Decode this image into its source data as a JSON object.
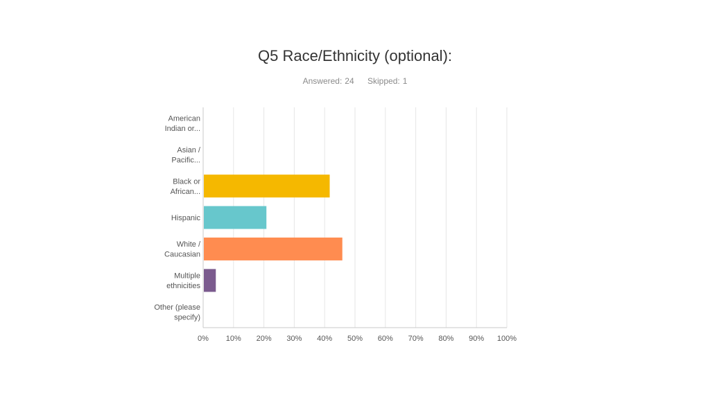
{
  "header": {
    "title": "Q5 Race/Ethnicity (optional):",
    "answered_label": "Answered:",
    "answered_value": "24",
    "skipped_label": "Skipped:",
    "skipped_value": "1"
  },
  "chart_data": {
    "type": "bar",
    "orientation": "horizontal",
    "title": "Q5 Race/Ethnicity (optional):",
    "categories": [
      [
        "American",
        "Indian or..."
      ],
      [
        "Asian /",
        "Pacific..."
      ],
      [
        "Black or",
        "African..."
      ],
      [
        "Hispanic"
      ],
      [
        "White /",
        "Caucasian"
      ],
      [
        "Multiple",
        "ethnicities"
      ],
      [
        "Other (please",
        "specify)"
      ]
    ],
    "values": [
      0,
      0,
      41.67,
      20.83,
      45.83,
      4.17,
      0
    ],
    "colors": [
      "#7ec8c4",
      "#4a6fa5",
      "#f5b800",
      "#67c7cc",
      "#ff8c50",
      "#7b5b8e",
      "#a0a0a0"
    ],
    "x_ticks": [
      "0%",
      "10%",
      "20%",
      "30%",
      "40%",
      "50%",
      "60%",
      "70%",
      "80%",
      "90%",
      "100%"
    ],
    "xlim": [
      0,
      100
    ],
    "grid": true,
    "xlabel": "",
    "ylabel": ""
  }
}
